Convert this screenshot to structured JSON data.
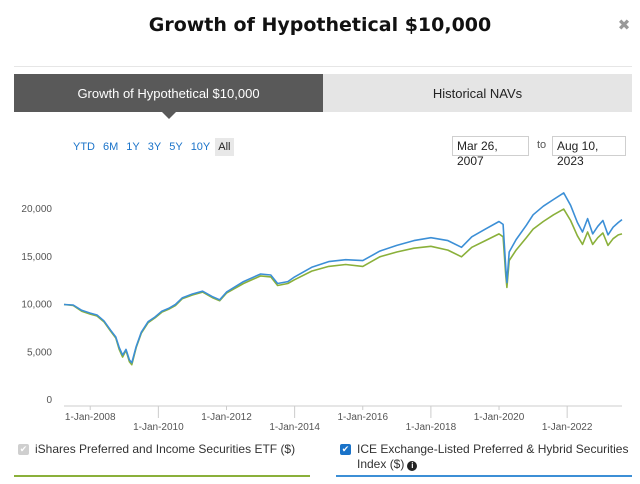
{
  "modal": {
    "title": "Growth of Hypothetical $10,000",
    "close_glyph": "✖"
  },
  "tabs": [
    {
      "label": "Growth of Hypothetical $10,000",
      "active": true
    },
    {
      "label": "Historical NAVs",
      "active": false
    }
  ],
  "range_buttons": [
    "YTD",
    "6M",
    "1Y",
    "3Y",
    "5Y",
    "10Y",
    "All"
  ],
  "range_selected": "All",
  "date_range": {
    "from": "Mar 26, 2007",
    "separator": "to",
    "to": "Aug 10, 2023"
  },
  "legend": {
    "fund": {
      "label": "iShares Preferred and Income Securities ETF ($)",
      "checked": true,
      "color": "#8ab03a"
    },
    "index": {
      "label": "ICE Exchange-Listed Preferred & Hybrid Securities Index ($)",
      "checked": true,
      "color": "#3c8fd6",
      "info_icon": "info-icon"
    }
  },
  "chart_data": {
    "type": "line",
    "ylim": [
      0,
      22000
    ],
    "y_ticks": [
      0,
      5000,
      10000,
      15000,
      20000
    ],
    "y_tick_labels": [
      "0",
      "5,000",
      "10,000",
      "15,000",
      "20,000"
    ],
    "xlim": [
      2007.23,
      2023.61
    ],
    "x_ticks": [
      2008,
      2010,
      2012,
      2014,
      2016,
      2018,
      2020,
      2022
    ],
    "x_tick_labels": [
      "1-Jan-2008",
      "1-Jan-2010",
      "1-Jan-2012",
      "1-Jan-2014",
      "1-Jan-2016",
      "1-Jan-2018",
      "1-Jan-2020",
      "1-Jan-2022"
    ],
    "grid": false,
    "series": [
      {
        "color": "#8ab03a",
        "points": [
          [
            2007.23,
            10000
          ],
          [
            2007.5,
            9900
          ],
          [
            2007.75,
            9300
          ],
          [
            2008.0,
            9000
          ],
          [
            2008.2,
            8800
          ],
          [
            2008.4,
            8200
          ],
          [
            2008.6,
            7200
          ],
          [
            2008.75,
            6500
          ],
          [
            2008.85,
            5300
          ],
          [
            2008.95,
            4500
          ],
          [
            2009.05,
            5200
          ],
          [
            2009.15,
            4000
          ],
          [
            2009.22,
            3700
          ],
          [
            2009.35,
            5500
          ],
          [
            2009.5,
            7000
          ],
          [
            2009.7,
            8100
          ],
          [
            2009.9,
            8600
          ],
          [
            2010.1,
            9200
          ],
          [
            2010.3,
            9500
          ],
          [
            2010.5,
            9900
          ],
          [
            2010.7,
            10600
          ],
          [
            2011.0,
            11000
          ],
          [
            2011.3,
            11300
          ],
          [
            2011.6,
            10700
          ],
          [
            2011.8,
            10400
          ],
          [
            2012.0,
            11200
          ],
          [
            2012.5,
            12200
          ],
          [
            2013.0,
            13000
          ],
          [
            2013.3,
            12900
          ],
          [
            2013.5,
            12000
          ],
          [
            2013.8,
            12200
          ],
          [
            2014.0,
            12600
          ],
          [
            2014.5,
            13500
          ],
          [
            2015.0,
            14000
          ],
          [
            2015.5,
            14200
          ],
          [
            2016.0,
            14000
          ],
          [
            2016.5,
            15000
          ],
          [
            2017.0,
            15500
          ],
          [
            2017.5,
            15900
          ],
          [
            2018.0,
            16100
          ],
          [
            2018.5,
            15700
          ],
          [
            2018.9,
            15000
          ],
          [
            2019.2,
            16000
          ],
          [
            2019.6,
            16700
          ],
          [
            2020.0,
            17400
          ],
          [
            2020.12,
            17100
          ],
          [
            2020.2,
            13000
          ],
          [
            2020.23,
            11800
          ],
          [
            2020.3,
            14600
          ],
          [
            2020.5,
            15700
          ],
          [
            2020.8,
            17000
          ],
          [
            2021.0,
            17900
          ],
          [
            2021.3,
            18700
          ],
          [
            2021.6,
            19400
          ],
          [
            2021.9,
            20000
          ],
          [
            2022.1,
            18800
          ],
          [
            2022.3,
            17200
          ],
          [
            2022.45,
            16300
          ],
          [
            2022.6,
            17600
          ],
          [
            2022.75,
            16300
          ],
          [
            2022.9,
            17000
          ],
          [
            2023.05,
            17500
          ],
          [
            2023.2,
            16200
          ],
          [
            2023.35,
            16900
          ],
          [
            2023.5,
            17300
          ],
          [
            2023.61,
            17400
          ]
        ]
      },
      {
        "color": "#3c8fd6",
        "points": [
          [
            2007.23,
            10000
          ],
          [
            2007.5,
            9950
          ],
          [
            2007.75,
            9400
          ],
          [
            2008.0,
            9100
          ],
          [
            2008.2,
            8900
          ],
          [
            2008.4,
            8300
          ],
          [
            2008.6,
            7300
          ],
          [
            2008.75,
            6600
          ],
          [
            2008.85,
            5500
          ],
          [
            2008.95,
            4700
          ],
          [
            2009.05,
            5300
          ],
          [
            2009.15,
            4200
          ],
          [
            2009.22,
            3900
          ],
          [
            2009.35,
            5600
          ],
          [
            2009.5,
            7100
          ],
          [
            2009.7,
            8200
          ],
          [
            2009.9,
            8700
          ],
          [
            2010.1,
            9300
          ],
          [
            2010.3,
            9600
          ],
          [
            2010.5,
            10000
          ],
          [
            2010.7,
            10700
          ],
          [
            2011.0,
            11100
          ],
          [
            2011.3,
            11400
          ],
          [
            2011.6,
            10800
          ],
          [
            2011.8,
            10500
          ],
          [
            2012.0,
            11300
          ],
          [
            2012.5,
            12400
          ],
          [
            2013.0,
            13200
          ],
          [
            2013.3,
            13100
          ],
          [
            2013.5,
            12200
          ],
          [
            2013.8,
            12400
          ],
          [
            2014.0,
            12900
          ],
          [
            2014.5,
            13900
          ],
          [
            2015.0,
            14500
          ],
          [
            2015.5,
            14700
          ],
          [
            2016.0,
            14600
          ],
          [
            2016.5,
            15600
          ],
          [
            2017.0,
            16200
          ],
          [
            2017.5,
            16700
          ],
          [
            2018.0,
            17000
          ],
          [
            2018.5,
            16700
          ],
          [
            2018.9,
            16000
          ],
          [
            2019.2,
            17100
          ],
          [
            2019.6,
            17900
          ],
          [
            2020.0,
            18700
          ],
          [
            2020.12,
            18400
          ],
          [
            2020.2,
            13800
          ],
          [
            2020.23,
            12300
          ],
          [
            2020.3,
            15500
          ],
          [
            2020.5,
            16800
          ],
          [
            2020.8,
            18300
          ],
          [
            2021.0,
            19400
          ],
          [
            2021.3,
            20300
          ],
          [
            2021.6,
            21000
          ],
          [
            2021.9,
            21700
          ],
          [
            2022.1,
            20400
          ],
          [
            2022.3,
            18600
          ],
          [
            2022.45,
            17600
          ],
          [
            2022.6,
            19000
          ],
          [
            2022.75,
            17400
          ],
          [
            2022.9,
            18200
          ],
          [
            2023.05,
            18800
          ],
          [
            2023.2,
            17300
          ],
          [
            2023.35,
            18100
          ],
          [
            2023.5,
            18600
          ],
          [
            2023.61,
            18900
          ]
        ]
      }
    ]
  }
}
